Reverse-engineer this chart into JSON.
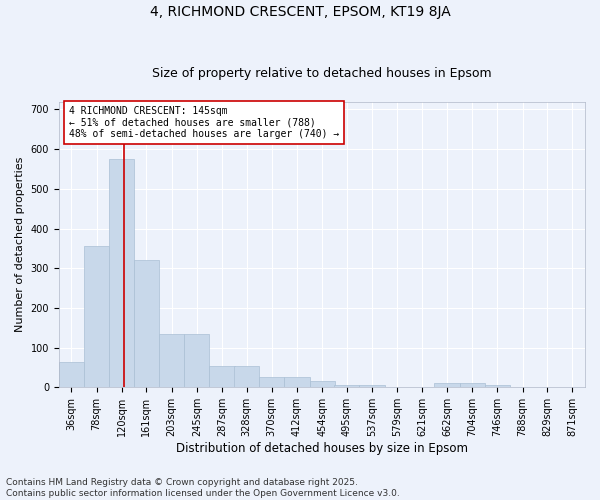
{
  "title1": "4, RICHMOND CRESCENT, EPSOM, KT19 8JA",
  "title2": "Size of property relative to detached houses in Epsom",
  "xlabel": "Distribution of detached houses by size in Epsom",
  "ylabel": "Number of detached properties",
  "bins": [
    36,
    78,
    120,
    161,
    203,
    245,
    287,
    328,
    370,
    412,
    454,
    495,
    537,
    579,
    621,
    662,
    704,
    746,
    788,
    829,
    871
  ],
  "bar_heights": [
    65,
    355,
    575,
    320,
    135,
    135,
    55,
    55,
    25,
    25,
    15,
    5,
    5,
    0,
    0,
    10,
    10,
    5,
    0,
    0,
    0
  ],
  "bar_color": "#c8d8ea",
  "bar_edge_color": "#aabfd4",
  "vline_x": 145,
  "vline_color": "#cc0000",
  "annotation_text": "4 RICHMOND CRESCENT: 145sqm\n← 51% of detached houses are smaller (788)\n48% of semi-detached houses are larger (740) →",
  "annotation_box_color": "#ffffff",
  "annotation_box_edge": "#cc0000",
  "ylim": [
    0,
    720
  ],
  "yticks": [
    0,
    100,
    200,
    300,
    400,
    500,
    600,
    700
  ],
  "bg_color": "#edf2fb",
  "grid_color": "#ffffff",
  "footnote": "Contains HM Land Registry data © Crown copyright and database right 2025.\nContains public sector information licensed under the Open Government Licence v3.0.",
  "title1_fontsize": 10,
  "title2_fontsize": 9,
  "xlabel_fontsize": 8.5,
  "ylabel_fontsize": 8,
  "tick_fontsize": 7,
  "annot_fontsize": 7,
  "footnote_fontsize": 6.5
}
